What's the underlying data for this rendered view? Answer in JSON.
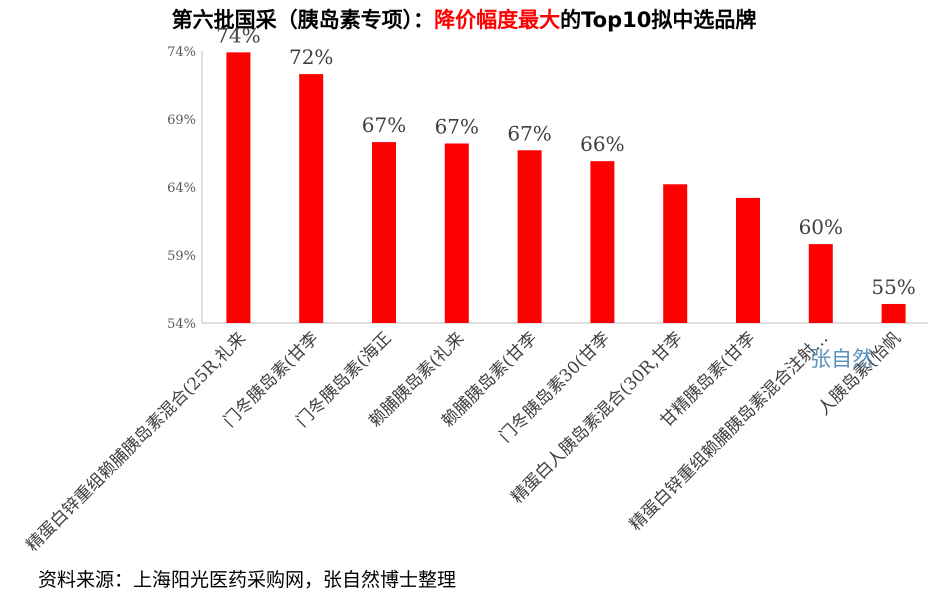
{
  "title": {
    "prefix": "第六批国采（胰岛素专项）：",
    "highlight": "降价幅度最大",
    "suffix": "的Top10拟中选品牌"
  },
  "source_note": "资料来源：上海阳光医药采购网，张自然博士整理",
  "watermark": "张自然",
  "colors": {
    "bar": "#ff0000",
    "axis": "#bfbfbf",
    "highlight": "#ff0000"
  },
  "chart_data": {
    "type": "bar",
    "categories": [
      "精蛋白锌重组赖脯胰岛素混合(25R,礼来",
      "门冬胰岛素(甘李",
      "门冬胰岛素(海正",
      "赖脯胰岛素(礼来",
      "赖脯胰岛素(甘李",
      "门冬胰岛素30(甘李",
      "精蛋白人胰岛素混合(30R,甘李",
      "甘精胰岛素(甘李",
      "精蛋白锌重组赖脯胰岛素混合注射…",
      "人胰岛素(怡帆"
    ],
    "values": [
      73.9,
      72.3,
      67.3,
      67.2,
      66.7,
      65.9,
      64.2,
      63.2,
      59.8,
      55.4
    ],
    "data_labels": [
      "74%",
      "72%",
      "67%",
      "67%",
      "67%",
      "66%",
      "",
      "",
      "60%",
      "55%"
    ],
    "y_ticks": [
      "54%",
      "59%",
      "64%",
      "69%",
      "74%"
    ],
    "ylim": [
      54,
      74
    ],
    "grid": false
  }
}
